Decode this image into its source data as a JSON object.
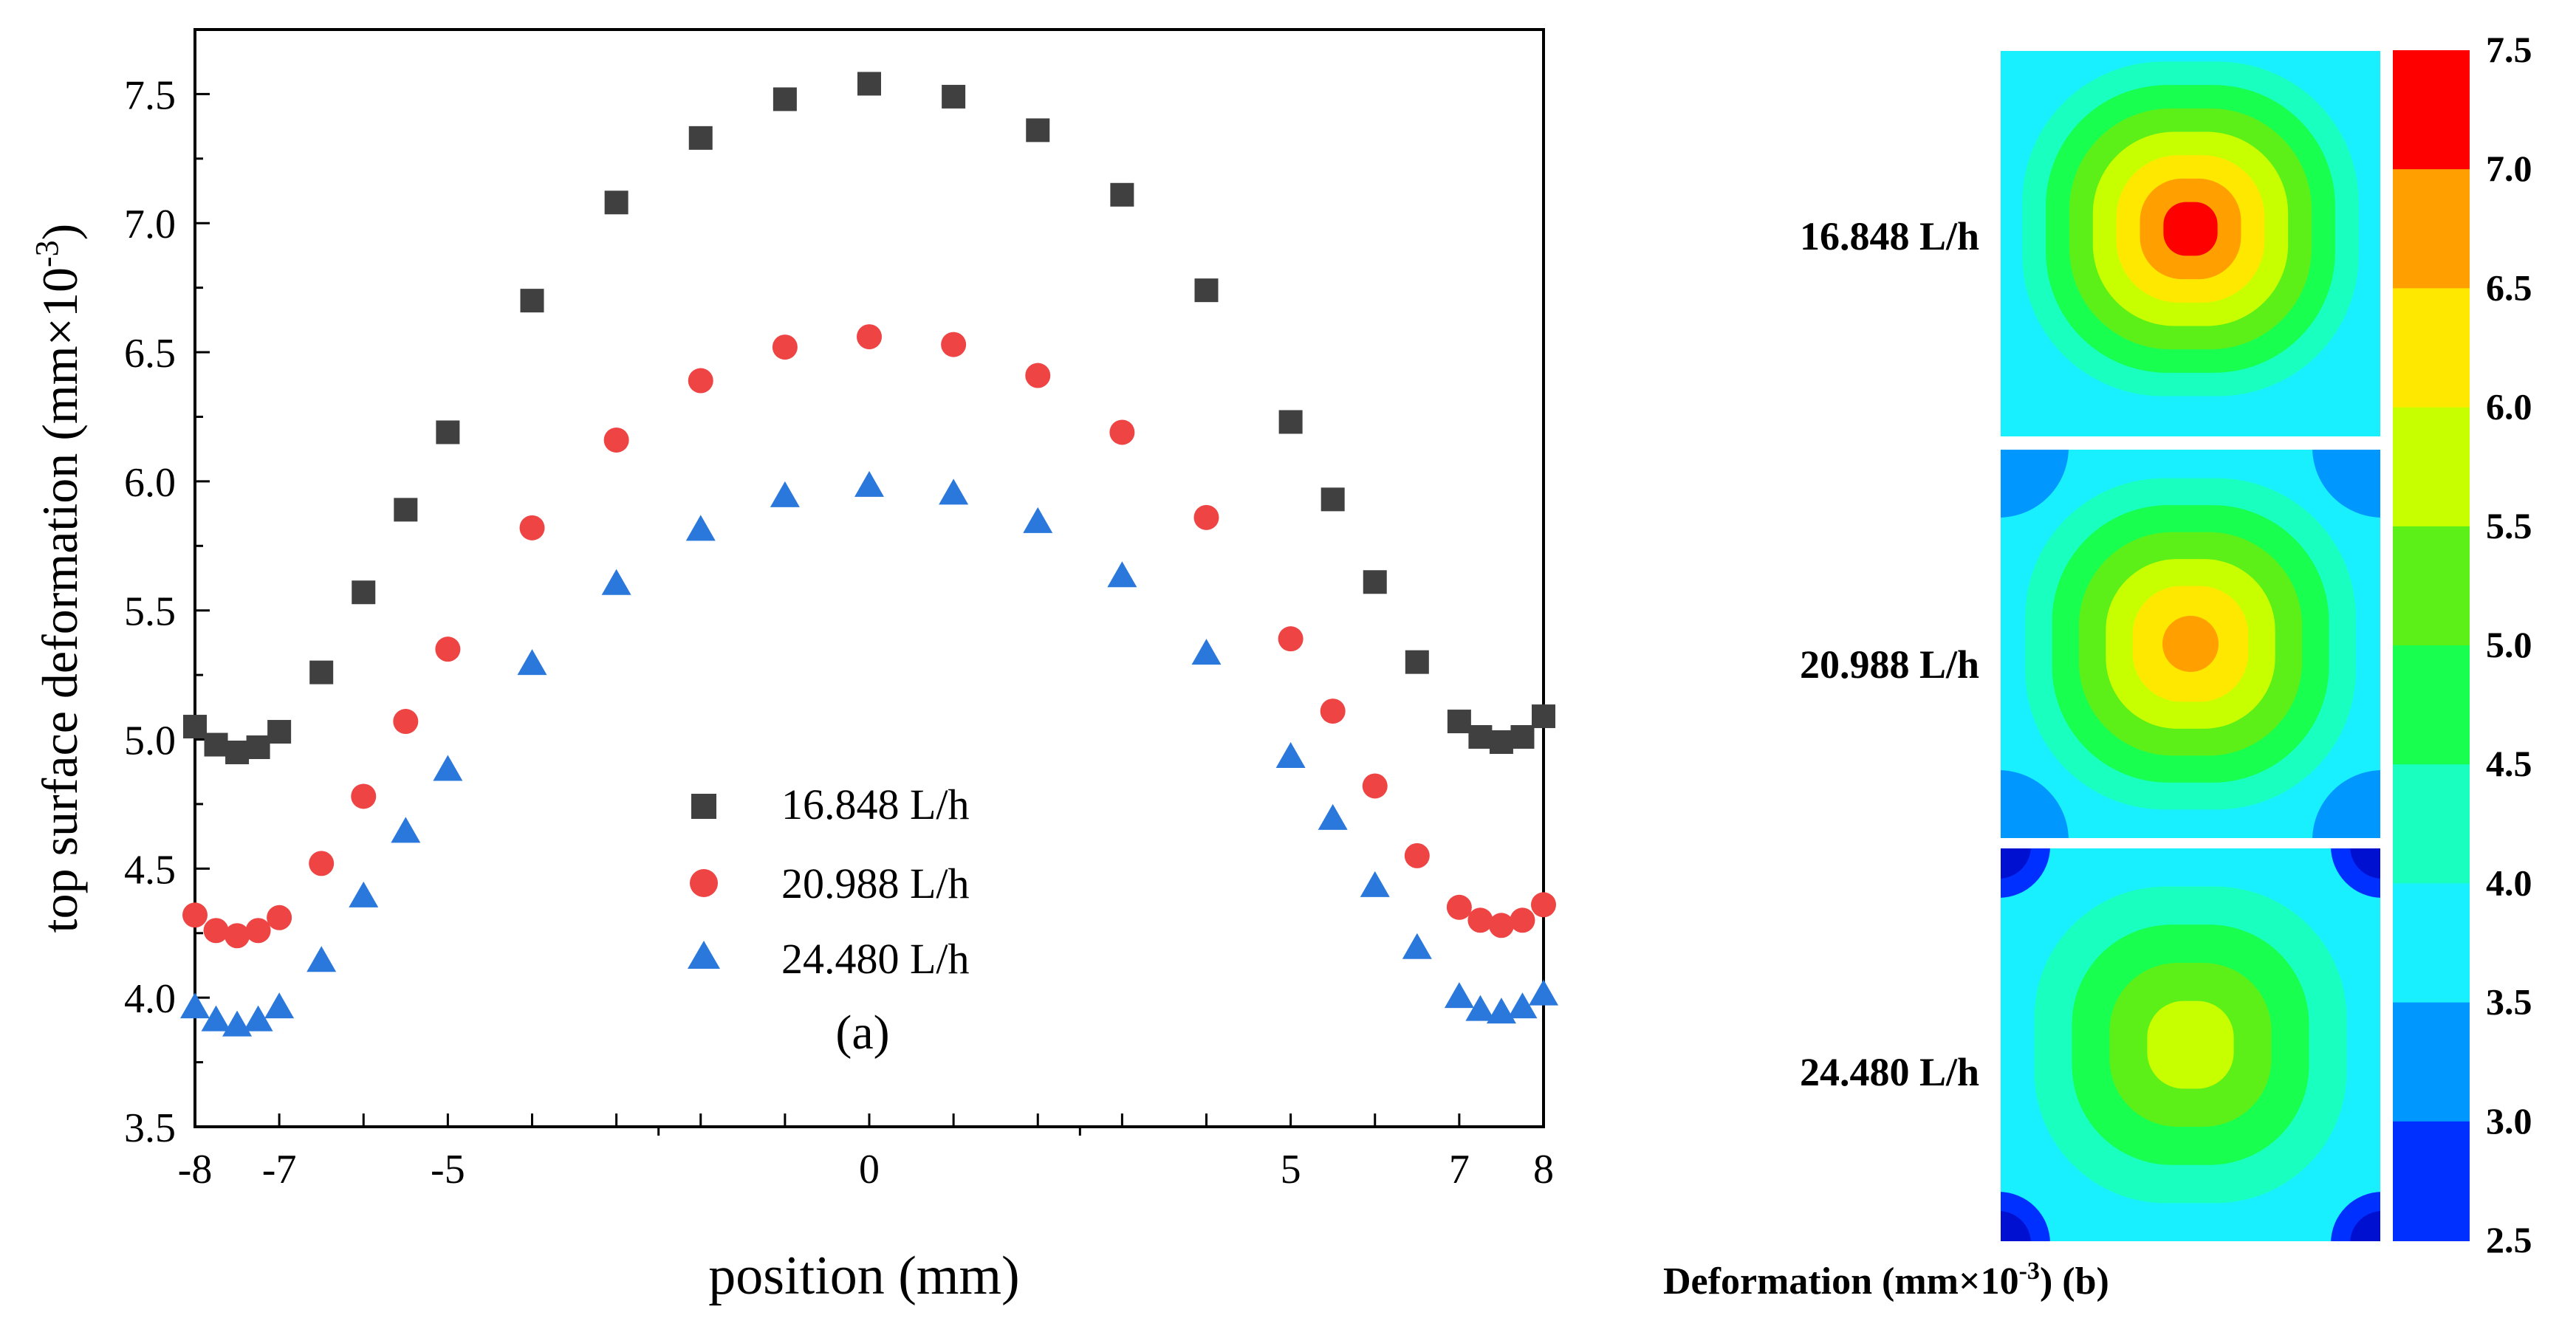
{
  "chart_data": [
    {
      "type": "scatter",
      "panel_label": "(a)",
      "xlabel": "position (mm)",
      "ylabel": "top surface deformation (mm×10",
      "ylabel_sup": "-3",
      "ylabel_close": ")",
      "xlim": [
        -8,
        8
      ],
      "ylim": [
        3.5,
        7.75
      ],
      "xticks": [
        -8,
        -7,
        -5,
        0,
        5,
        7,
        8
      ],
      "yticks": [
        3.5,
        4.0,
        4.5,
        5.0,
        5.5,
        6.0,
        6.5,
        7.0,
        7.5
      ],
      "legend_position": "center",
      "series": [
        {
          "name": "16.848 L/h",
          "marker": "square",
          "color": "#404040",
          "x": [
            -8,
            -7.75,
            -7.5,
            -7.25,
            -7,
            -6.5,
            -6,
            -5.5,
            -5,
            -4,
            -3,
            -2,
            -1,
            0,
            1,
            2,
            3,
            4,
            5,
            5.5,
            6,
            6.5,
            7,
            7.25,
            7.5,
            7.75,
            8
          ],
          "y": [
            5.05,
            4.98,
            4.95,
            4.97,
            5.03,
            5.26,
            5.57,
            5.89,
            6.19,
            6.7,
            7.08,
            7.33,
            7.48,
            7.54,
            7.49,
            7.36,
            7.11,
            6.74,
            6.23,
            5.93,
            5.61,
            5.3,
            5.07,
            5.01,
            4.99,
            5.01,
            5.09
          ]
        },
        {
          "name": "20.988 L/h",
          "marker": "circle",
          "color": "#ee4444",
          "x": [
            -8,
            -7.75,
            -7.5,
            -7.25,
            -7,
            -6.5,
            -6,
            -5.5,
            -5,
            -4,
            -3,
            -2,
            -1,
            0,
            1,
            2,
            3,
            4,
            5,
            5.5,
            6,
            6.5,
            7,
            7.25,
            7.5,
            7.75,
            8
          ],
          "y": [
            4.32,
            4.26,
            4.24,
            4.26,
            4.31,
            4.52,
            4.78,
            5.07,
            5.35,
            5.82,
            6.16,
            6.39,
            6.52,
            6.56,
            6.53,
            6.41,
            6.19,
            5.86,
            5.39,
            5.11,
            4.82,
            4.55,
            4.35,
            4.3,
            4.28,
            4.3,
            4.36
          ]
        },
        {
          "name": "24.480 L/h",
          "marker": "triangle",
          "color": "#2b78dc",
          "x": [
            -8,
            -7.75,
            -7.5,
            -7.25,
            -7,
            -6.5,
            -6,
            -5.5,
            -5,
            -4,
            -3,
            -2,
            -1,
            0,
            1,
            2,
            3,
            4,
            5,
            5.5,
            6,
            6.5,
            7,
            7.25,
            7.5,
            7.75,
            8
          ],
          "y": [
            3.96,
            3.91,
            3.89,
            3.91,
            3.96,
            4.14,
            4.39,
            4.64,
            4.88,
            5.29,
            5.6,
            5.81,
            5.94,
            5.98,
            5.95,
            5.84,
            5.63,
            5.33,
            4.93,
            4.69,
            4.43,
            4.19,
            4.0,
            3.95,
            3.94,
            3.96,
            4.01
          ]
        }
      ]
    },
    {
      "type": "heatmap",
      "panel_label": "(b)",
      "xlabel": "Deformation (mm×10",
      "xlabel_sup": "-3",
      "xlabel_close": ") (b)",
      "colorbar_ticks": [
        "7.5",
        "7.0",
        "6.5",
        "6.0",
        "5.5",
        "5.0",
        "4.5",
        "4.0",
        "3.5",
        "3.0",
        "2.5"
      ],
      "colorbar_colors": [
        "#ff0000",
        "#ffa000",
        "#ffe800",
        "#c8ff00",
        "#5cf018",
        "#18ff50",
        "#18ffc0",
        "#18f0ff",
        "#0098ff",
        "#0030ff"
      ],
      "panels": [
        {
          "label": "16.848 L/h",
          "max": 7.5,
          "levels": [
            "#18f0ff",
            "#18ffc0",
            "#18ff50",
            "#5cf018",
            "#c8ff00",
            "#ffe800",
            "#ffa000",
            "#ff0000"
          ]
        },
        {
          "label": "20.988 L/h",
          "max": 6.6,
          "corners": "#0098ff",
          "levels": [
            "#18f0ff",
            "#18ffc0",
            "#18ff50",
            "#5cf018",
            "#c8ff00",
            "#ffe800",
            "#ffa000"
          ]
        },
        {
          "label": "24.480 L/h",
          "max": 6.0,
          "corners": "#0030ff",
          "levels": [
            "#18f0ff",
            "#18ffc0",
            "#18ff50",
            "#5cf018",
            "#c8ff00"
          ]
        }
      ]
    }
  ]
}
